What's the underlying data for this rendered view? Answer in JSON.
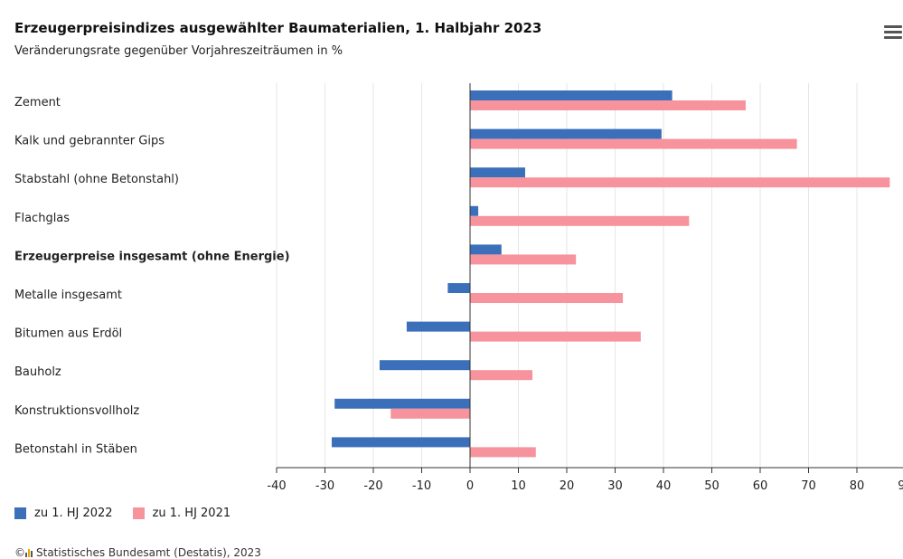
{
  "header": {
    "title": "Erzeugerpreisindizes ausgewählter Baumaterialien, 1. Halbjahr 2023",
    "subtitle": "Veränderungsrate gegenüber Vorjahreszeiträumen in %"
  },
  "menu_icon": "hamburger-menu-icon",
  "chart_data": {
    "type": "bar",
    "orientation": "horizontal",
    "categories": [
      "Zement",
      "Kalk und gebrannter Gips",
      "Stabstahl (ohne Betonstahl)",
      "Flachglas",
      "Erzeugerpreise insgesamt (ohne Energie)",
      "Metalle insgesamt",
      "Bitumen aus Erdöl",
      "Bauholz",
      "Konstruktionsvollholz",
      "Betonstahl in Stäben"
    ],
    "bold_categories": [
      "Erzeugerpreise insgesamt (ohne Energie)"
    ],
    "series": [
      {
        "name": "zu 1. HJ 2022",
        "color": "#3b6fba",
        "values": [
          41.8,
          39.6,
          11.4,
          1.7,
          6.5,
          -4.6,
          -13.1,
          -18.7,
          -28.0,
          -28.6
        ]
      },
      {
        "name": "zu 1. HJ 2021",
        "color": "#f6939c",
        "values": [
          57.0,
          67.6,
          86.8,
          45.3,
          21.9,
          31.6,
          35.3,
          12.9,
          -16.4,
          13.6
        ]
      }
    ],
    "x_ticks": [
      "-40",
      "-30",
      "-20",
      "-10",
      "0",
      "10",
      "20",
      "30",
      "40",
      "50",
      "60",
      "70",
      "80",
      "90"
    ],
    "xlim": [
      -40,
      90
    ],
    "grid": true,
    "legend_position": "bottom-left"
  },
  "legend": [
    {
      "label": "zu 1. HJ 2022",
      "color": "#3b6fba"
    },
    {
      "label": "zu 1. HJ 2021",
      "color": "#f6939c"
    }
  ],
  "source": {
    "text": "Statistisches Bundesamt (Destatis), 2023",
    "prefix": "©"
  }
}
